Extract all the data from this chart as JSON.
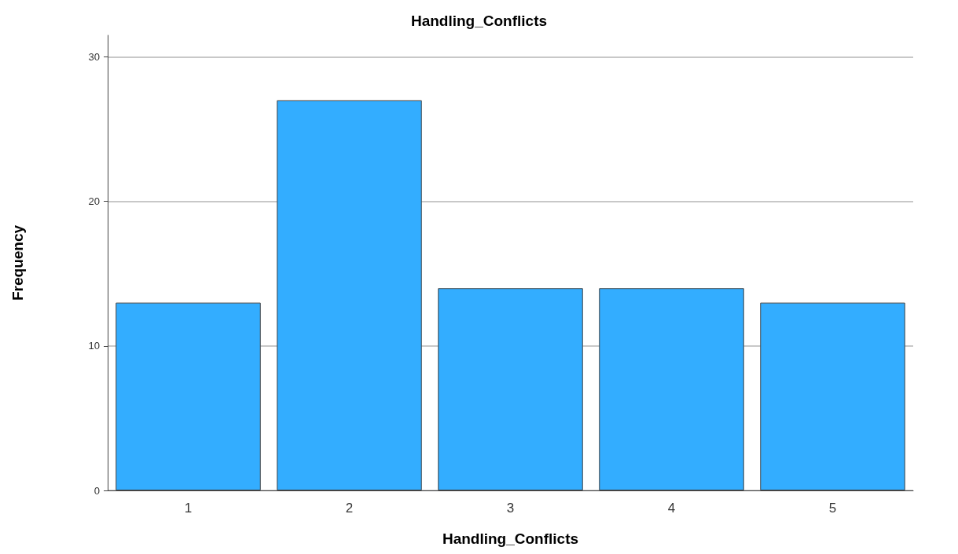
{
  "chart_data": {
    "type": "bar",
    "title": "Handling_Conflicts",
    "xlabel": "Handling_Conflicts",
    "ylabel": "Frequency",
    "categories": [
      "1",
      "2",
      "3",
      "4",
      "5"
    ],
    "values": [
      13,
      27,
      14,
      14,
      13
    ],
    "color": "#33adff",
    "ylim": [
      0,
      31.5
    ],
    "yticks": [
      0,
      10,
      20,
      30
    ],
    "grid": "y"
  }
}
